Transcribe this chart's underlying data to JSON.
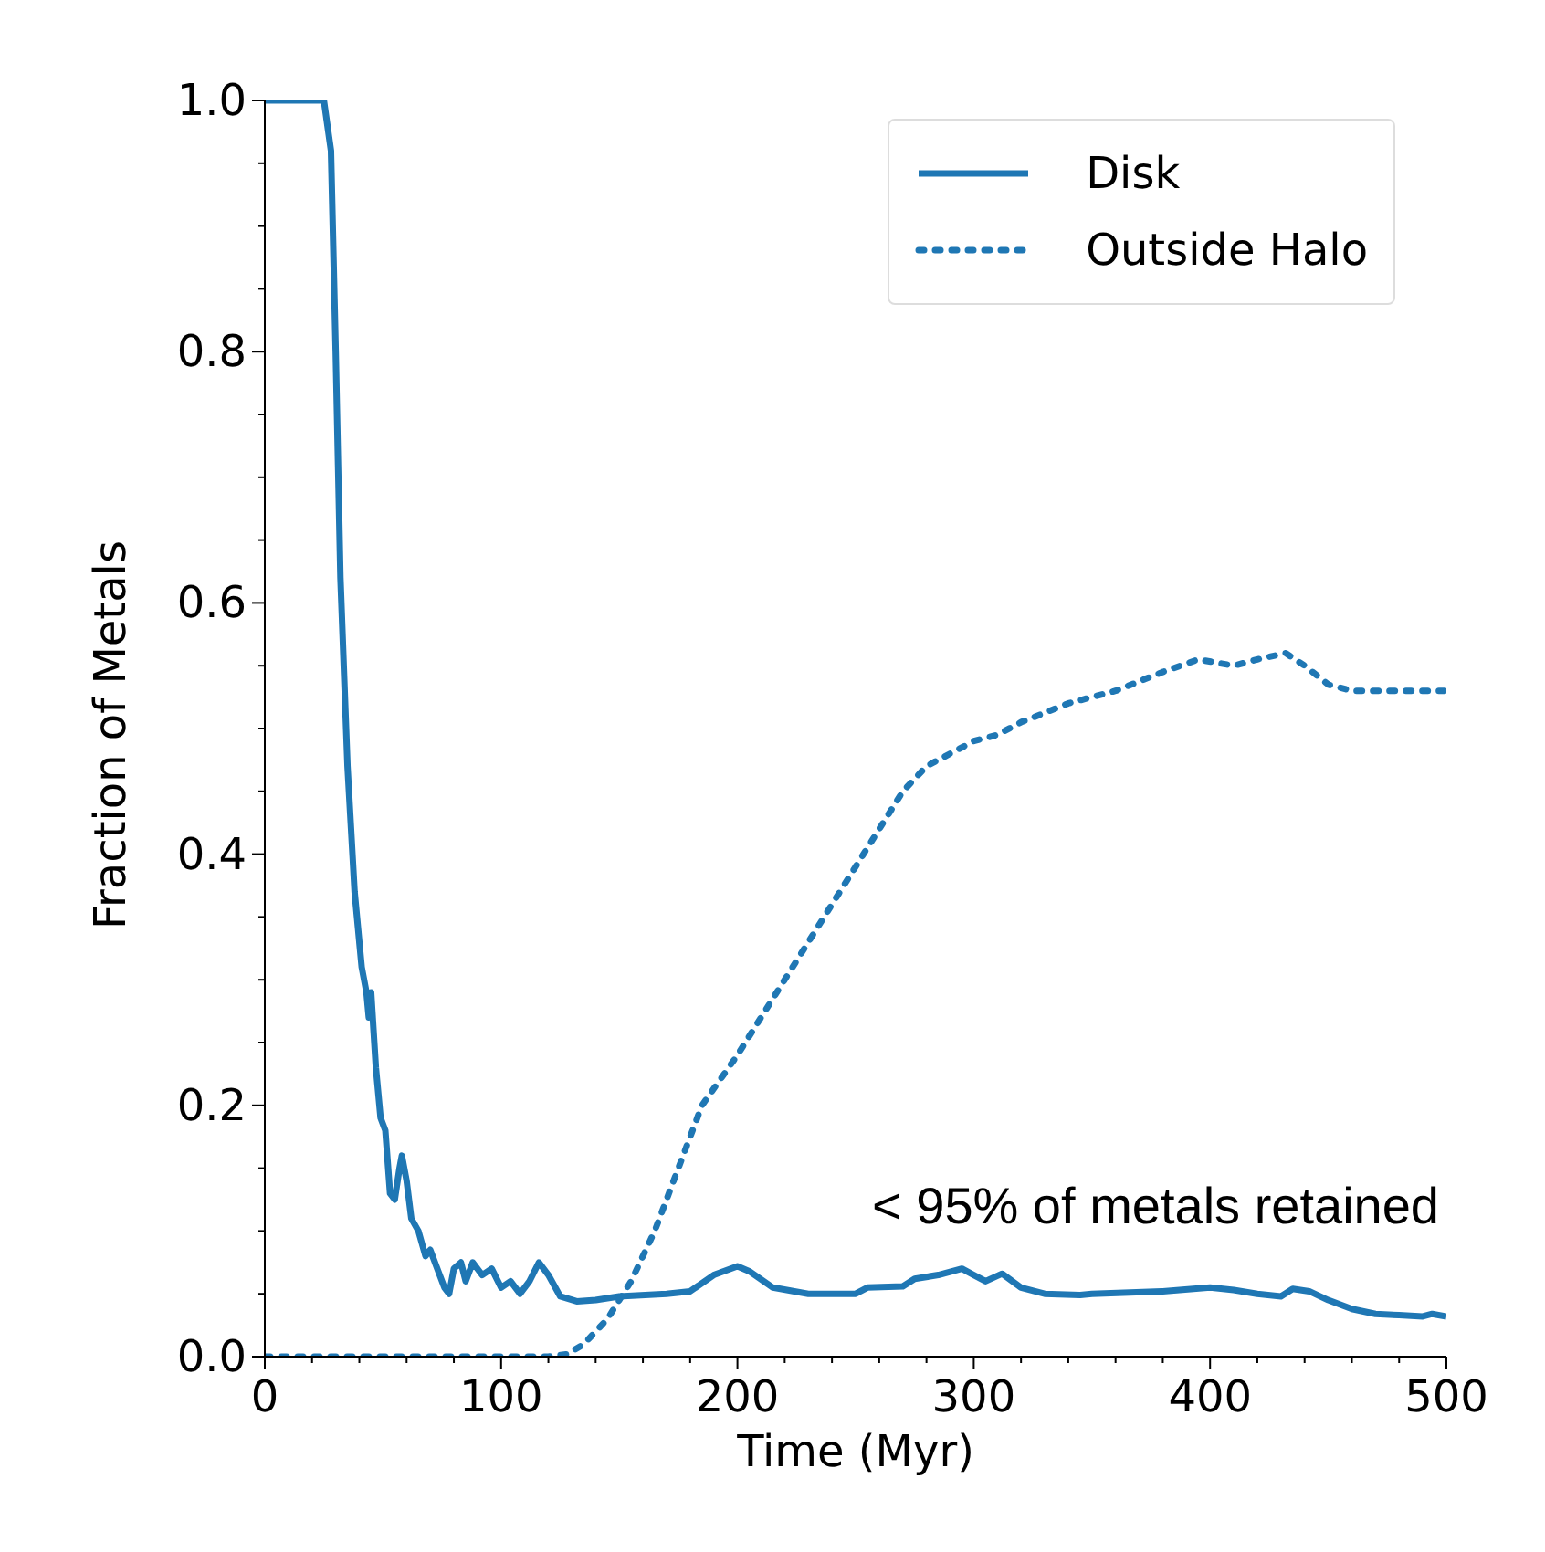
{
  "chart_data": {
    "type": "line",
    "xlabel": "Time (Myr)",
    "ylabel": "Fraction of Metals",
    "xlim": [
      0,
      500
    ],
    "xticks": [
      0,
      {
        "value": 20,
        "label": null
      },
      {
        "value": 40,
        "label": null
      },
      {
        "value": 60,
        "label": null
      },
      {
        "value": 80,
        "label": null
      },
      100,
      {
        "value": 120,
        "label": null
      },
      {
        "value": 140,
        "label": null
      },
      {
        "value": 160,
        "label": null
      },
      {
        "value": 180,
        "label": null
      },
      200,
      {
        "value": 220,
        "label": null
      },
      {
        "value": 240,
        "label": null
      },
      {
        "value": 260,
        "label": null
      },
      {
        "value": 280,
        "label": null
      },
      300,
      {
        "value": 320,
        "label": null
      },
      {
        "value": 340,
        "label": null
      },
      {
        "value": 360,
        "label": null
      },
      {
        "value": 380,
        "label": null
      },
      400,
      {
        "value": 420,
        "label": null
      },
      {
        "value": 440,
        "label": null
      },
      {
        "value": 460,
        "label": null
      },
      {
        "value": 480,
        "label": null
      },
      500
    ],
    "ylim": [
      0,
      1
    ],
    "yticks": [
      {
        "value": 0,
        "label": "0.0"
      },
      {
        "value": 0.05,
        "label": null
      },
      {
        "value": 0.1,
        "label": null
      },
      {
        "value": 0.15,
        "label": null
      },
      {
        "value": 0.2,
        "label": "0.2"
      },
      {
        "value": 0.25,
        "label": null
      },
      {
        "value": 0.3,
        "label": null
      },
      {
        "value": 0.35,
        "label": null
      },
      {
        "value": 0.4,
        "label": "0.4"
      },
      {
        "value": 0.45,
        "label": null
      },
      {
        "value": 0.5,
        "label": null
      },
      {
        "value": 0.55,
        "label": null
      },
      {
        "value": 0.6,
        "label": "0.6"
      },
      {
        "value": 0.65,
        "label": null
      },
      {
        "value": 0.7,
        "label": null
      },
      {
        "value": 0.75,
        "label": null
      },
      {
        "value": 0.8,
        "label": "0.8"
      },
      {
        "value": 0.85,
        "label": null
      },
      {
        "value": 0.9,
        "label": null
      },
      {
        "value": 0.95,
        "label": null
      },
      {
        "value": 1,
        "label": "1.0"
      }
    ],
    "legend": "top right",
    "grid": false,
    "marker": "none",
    "annotations": [
      "< 95% of metals retained"
    ],
    "series": [
      {
        "name": "Disk",
        "color": "#1f77b4",
        "line_style": "solid",
        "x": [
          0,
          25,
          28,
          30,
          32,
          35,
          38,
          41,
          43,
          44,
          45,
          47,
          49,
          51,
          53,
          55,
          57,
          58,
          60,
          62,
          65,
          68,
          70,
          73,
          76,
          78,
          80,
          83,
          85,
          88,
          92,
          96,
          100,
          104,
          108,
          112,
          116,
          120,
          125,
          132,
          140,
          150,
          170,
          180,
          190,
          200,
          205,
          215,
          230,
          250,
          255,
          270,
          275,
          285,
          295,
          300,
          305,
          312,
          320,
          330,
          345,
          350,
          380,
          400,
          410,
          420,
          430,
          435,
          442,
          450,
          460,
          470,
          480,
          490,
          494,
          500
        ],
        "values": [
          1,
          1,
          0.96,
          0.8,
          0.62,
          0.47,
          0.37,
          0.31,
          0.29,
          0.27,
          0.29,
          0.23,
          0.19,
          0.18,
          0.13,
          0.125,
          0.15,
          0.16,
          0.14,
          0.11,
          0.1,
          0.08,
          0.085,
          0.07,
          0.055,
          0.05,
          0.07,
          0.075,
          0.06,
          0.075,
          0.065,
          0.07,
          0.055,
          0.06,
          0.05,
          0.06,
          0.075,
          0.065,
          0.048,
          0.044,
          0.045,
          0.048,
          0.05,
          0.052,
          0.065,
          0.072,
          0.068,
          0.055,
          0.05,
          0.05,
          0.055,
          0.056,
          0.062,
          0.065,
          0.07,
          0.065,
          0.06,
          0.066,
          0.055,
          0.05,
          0.049,
          0.05,
          0.052,
          0.055,
          0.053,
          0.05,
          0.048,
          0.054,
          0.052,
          0.045,
          0.038,
          0.034,
          0.033,
          0.032,
          0.034,
          0.032
        ]
      },
      {
        "name": "Outside Halo",
        "color": "#1f77b4",
        "line_style": "dotted",
        "x": [
          0,
          120,
          128,
          135,
          145,
          155,
          165,
          175,
          185,
          200,
          210,
          220,
          230,
          240,
          250,
          260,
          270,
          280,
          290,
          300,
          310,
          320,
          340,
          360,
          380,
          395,
          410,
          420,
          432,
          440,
          450,
          460,
          480,
          500
        ],
        "values": [
          0,
          0,
          0.002,
          0.01,
          0.03,
          0.06,
          0.1,
          0.15,
          0.2,
          0.24,
          0.27,
          0.3,
          0.33,
          0.36,
          0.39,
          0.42,
          0.45,
          0.47,
          0.48,
          0.49,
          0.495,
          0.505,
          0.52,
          0.53,
          0.545,
          0.555,
          0.55,
          0.555,
          0.56,
          0.55,
          0.535,
          0.53,
          0.53,
          0.53
        ]
      }
    ]
  }
}
